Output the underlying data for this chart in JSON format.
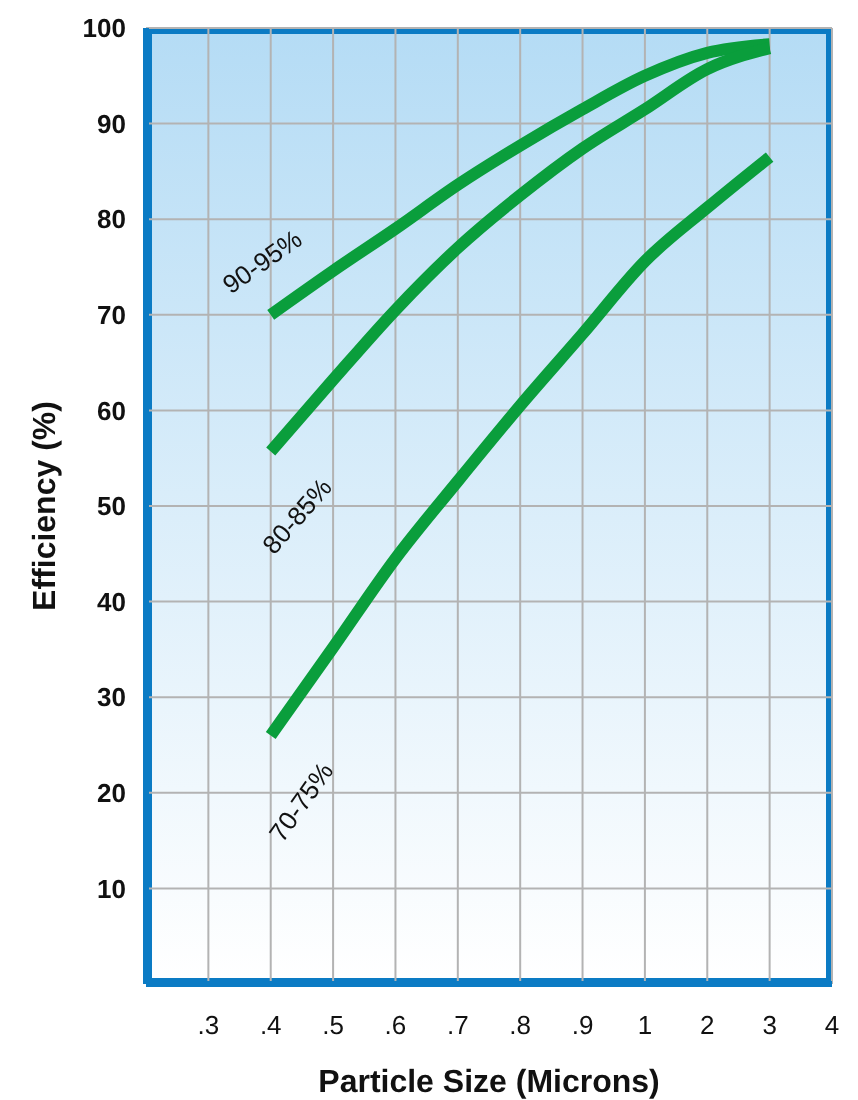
{
  "chart_data": {
    "type": "line",
    "xlabel": "Particle Size (Microns)",
    "ylabel": "Efficiency  (%)",
    "categories": [
      ".3",
      ".4",
      ".5",
      ".6",
      ".7",
      ".8",
      ".9",
      "1",
      "2",
      "3",
      "4"
    ],
    "ylim": [
      0,
      100
    ],
    "yticks": [
      10,
      20,
      30,
      40,
      50,
      60,
      70,
      80,
      90,
      100
    ],
    "grid": true,
    "legend": false,
    "marker": "none",
    "line_style": "solid",
    "series": [
      {
        "name": "90-95%",
        "color": "#0a9e3c",
        "values": [
          null,
          70,
          74.6,
          79,
          83.6,
          87.7,
          91.5,
          95,
          97.4,
          98.3,
          null
        ]
      },
      {
        "name": "80-85%",
        "color": "#0a9e3c",
        "values": [
          null,
          55.7,
          63.2,
          70.5,
          77,
          82.5,
          87.4,
          91.5,
          95.7,
          97.9,
          null
        ]
      },
      {
        "name": "70-75%",
        "color": "#0a9e3c",
        "values": [
          null,
          26,
          35.2,
          44.5,
          52.6,
          60.5,
          68,
          75.6,
          81.2,
          86.5,
          null
        ]
      }
    ]
  }
}
